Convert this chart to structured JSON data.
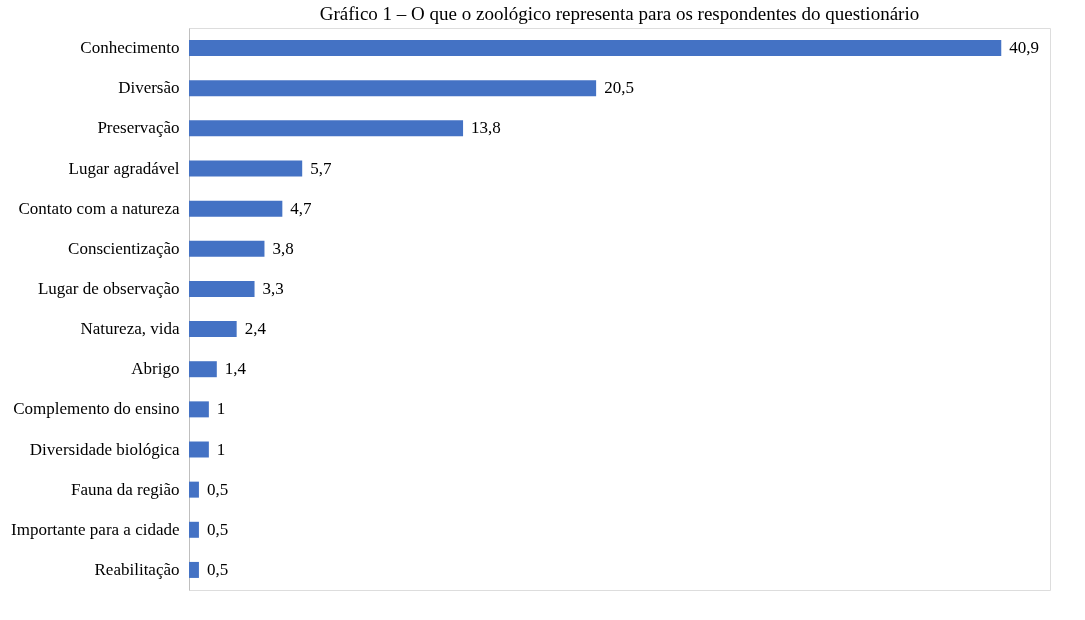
{
  "chart_data": {
    "type": "bar",
    "orientation": "horizontal",
    "title": "Gráfico 1 – O que o zoológico representa para os respondentes do questionário",
    "categories": [
      "Conhecimento",
      "Diversão",
      "Preservação",
      "Lugar agradável",
      "Contato com a natureza",
      "Conscientização",
      "Lugar de observação",
      "Natureza, vida",
      "Abrigo",
      "Complemento do ensino",
      "Diversidade biológica",
      "Fauna da região",
      "Importante para a cidade",
      "Reabilitação"
    ],
    "values": [
      40.9,
      20.5,
      13.8,
      5.7,
      4.7,
      3.8,
      3.3,
      2.4,
      1.4,
      1,
      1,
      0.5,
      0.5,
      0.5
    ],
    "value_labels": [
      "40,9",
      "20,5",
      "13,8",
      "5,7",
      "4,7",
      "3,8",
      "3,3",
      "2,4",
      "1,4",
      "1",
      "1",
      "0,5",
      "0,5",
      "0,5"
    ],
    "color": "#4472c4"
  }
}
